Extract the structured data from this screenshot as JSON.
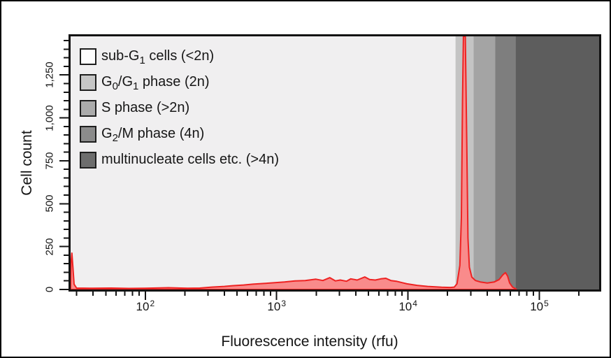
{
  "chart": {
    "y_title": "Cell count",
    "x_title": "Fluorescence intensity (rfu)"
  },
  "legend": {
    "items": [
      {
        "id": "sub-g1",
        "swatch_color": "#fdfdfd",
        "label": "sub-G1 cells (<2n)",
        "parts": [
          {
            "t": "sub-G"
          },
          {
            "sub": "1"
          },
          {
            "t": " cells (<2n)"
          }
        ]
      },
      {
        "id": "g0-g1",
        "swatch_color": "#c6c6c6",
        "label": "G0/G1 phase (2n)",
        "parts": [
          {
            "t": "G"
          },
          {
            "sub": "0"
          },
          {
            "t": "/G"
          },
          {
            "sub": "1"
          },
          {
            "t": " phase (2n)"
          }
        ]
      },
      {
        "id": "s-phase",
        "swatch_color": "#ababab",
        "label": "S phase (>2n)",
        "parts": [
          {
            "t": "S phase (>2n)"
          }
        ]
      },
      {
        "id": "g2-m",
        "swatch_color": "#8b8b8b",
        "label": "G2/M phase (4n)",
        "parts": [
          {
            "t": "G"
          },
          {
            "sub": "2"
          },
          {
            "t": "/M phase (4n)"
          }
        ]
      },
      {
        "id": "multinucleate",
        "swatch_color": "#6d6d6d",
        "label": "multinucleate cells etc. (>4n)",
        "parts": [
          {
            "t": "multinucleate cells etc. (>4n)"
          }
        ]
      }
    ]
  },
  "chart_data": {
    "type": "area",
    "title": "",
    "xlabel": "Fluorescence intensity (rfu)",
    "ylabel": "Cell count",
    "x_scale": "log",
    "grid": false,
    "legend_position": "top-left-inside",
    "x_range_rfu": [
      27,
      285000
    ],
    "y_range": [
      0,
      1475
    ],
    "x_major_ticks": [
      {
        "value": 100,
        "base": "10",
        "exp": "2"
      },
      {
        "value": 1000,
        "base": "10",
        "exp": "3"
      },
      {
        "value": 10000,
        "base": "10",
        "exp": "4"
      },
      {
        "value": 100000,
        "base": "10",
        "exp": "5"
      }
    ],
    "y_major_ticks": [
      {
        "value": 0,
        "label": "0"
      },
      {
        "value": 250,
        "label": "250"
      },
      {
        "value": 500,
        "label": "500"
      },
      {
        "value": 750,
        "label": "750"
      },
      {
        "value": 1000,
        "label": "1,000"
      },
      {
        "value": 1250,
        "label": "1,250"
      }
    ],
    "y_minor_step": 50,
    "regions": [
      {
        "id": "sub-g1",
        "label": "sub-G1 cells (<2n)",
        "range_rfu": [
          27,
          23000
        ],
        "color": "#f0eff0"
      },
      {
        "id": "g0-g1",
        "label": "G0/G1 phase (2n)",
        "range_rfu": [
          23000,
          31500
        ],
        "color": "#c4c4c4"
      },
      {
        "id": "s-phase",
        "label": "S phase (>2n)",
        "range_rfu": [
          31500,
          46000
        ],
        "color": "#a4a4a4"
      },
      {
        "id": "g2-m",
        "label": "G2/M phase (4n)",
        "range_rfu": [
          46000,
          66000
        ],
        "color": "#7e7e7e"
      },
      {
        "id": "multinucleate",
        "label": "multinucleate cells etc. (>4n)",
        "range_rfu": [
          66000,
          285000
        ],
        "color": "#5d5d5d"
      }
    ],
    "series": [
      {
        "name": "cell-count-histogram",
        "line_color": "#ee2222",
        "fill_color": "#f98b8b",
        "points": [
          [
            27,
            0
          ],
          [
            27.2,
            150
          ],
          [
            27.6,
            212
          ],
          [
            28.1,
            130
          ],
          [
            28.7,
            30
          ],
          [
            30,
            8
          ],
          [
            40,
            7
          ],
          [
            55,
            8
          ],
          [
            75,
            6
          ],
          [
            100,
            7
          ],
          [
            150,
            10
          ],
          [
            210,
            7
          ],
          [
            260,
            8
          ],
          [
            320,
            14
          ],
          [
            400,
            18
          ],
          [
            460,
            22
          ],
          [
            560,
            26
          ],
          [
            660,
            31
          ],
          [
            800,
            35
          ],
          [
            950,
            39
          ],
          [
            1150,
            44
          ],
          [
            1380,
            50
          ],
          [
            1650,
            52
          ],
          [
            1990,
            60
          ],
          [
            2250,
            52
          ],
          [
            2540,
            69
          ],
          [
            2800,
            50
          ],
          [
            3050,
            55
          ],
          [
            3400,
            48
          ],
          [
            3670,
            62
          ],
          [
            4100,
            55
          ],
          [
            4690,
            73
          ],
          [
            5100,
            58
          ],
          [
            5640,
            55
          ],
          [
            6200,
            62
          ],
          [
            6780,
            65
          ],
          [
            7400,
            52
          ],
          [
            8150,
            48
          ],
          [
            9000,
            40
          ],
          [
            9800,
            33
          ],
          [
            11700,
            24
          ],
          [
            14100,
            18
          ],
          [
            18000,
            13
          ],
          [
            21000,
            12
          ],
          [
            22500,
            14
          ],
          [
            23600,
            33
          ],
          [
            24800,
            140
          ],
          [
            25500,
            420
          ],
          [
            26000,
            1100
          ],
          [
            26400,
            1480
          ],
          [
            27300,
            1480
          ],
          [
            28000,
            850
          ],
          [
            28600,
            300
          ],
          [
            29300,
            130
          ],
          [
            30600,
            72
          ],
          [
            32600,
            52
          ],
          [
            35500,
            44
          ],
          [
            40100,
            38
          ],
          [
            45400,
            44
          ],
          [
            49400,
            58
          ],
          [
            52500,
            84
          ],
          [
            55200,
            98
          ],
          [
            57300,
            78
          ],
          [
            59400,
            38
          ],
          [
            62400,
            14
          ],
          [
            65600,
            5
          ],
          [
            67000,
            0
          ]
        ]
      }
    ]
  }
}
